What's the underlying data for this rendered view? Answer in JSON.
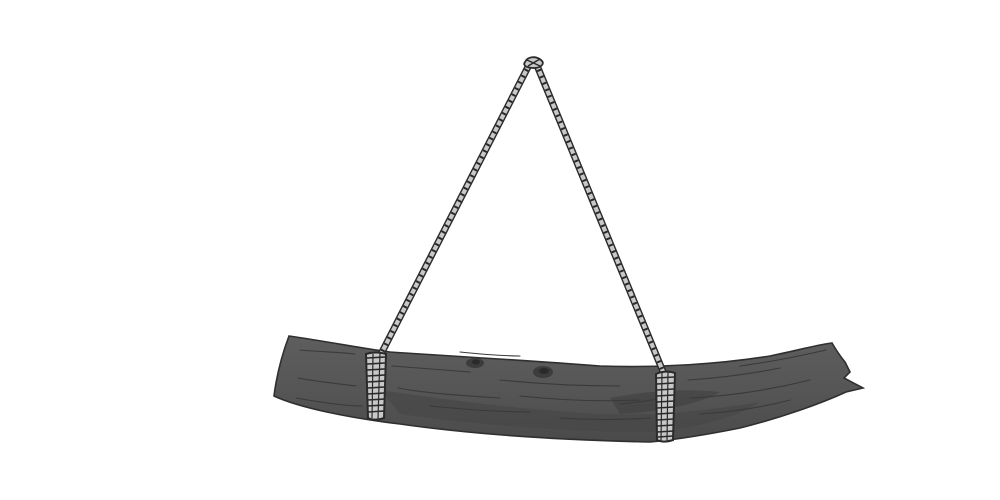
{
  "scene": {
    "subject": "log-hanging-from-rope",
    "colors": {
      "background": "#ffffff",
      "log_fill": "#555555",
      "log_edge": "#2f2f2f",
      "log_shadow": "#454545",
      "log_highlight": "#6b6b6b",
      "grain": "#3a3a3a",
      "rope_light": "#c8c8c8",
      "rope_dark": "#2a2a2a"
    }
  }
}
